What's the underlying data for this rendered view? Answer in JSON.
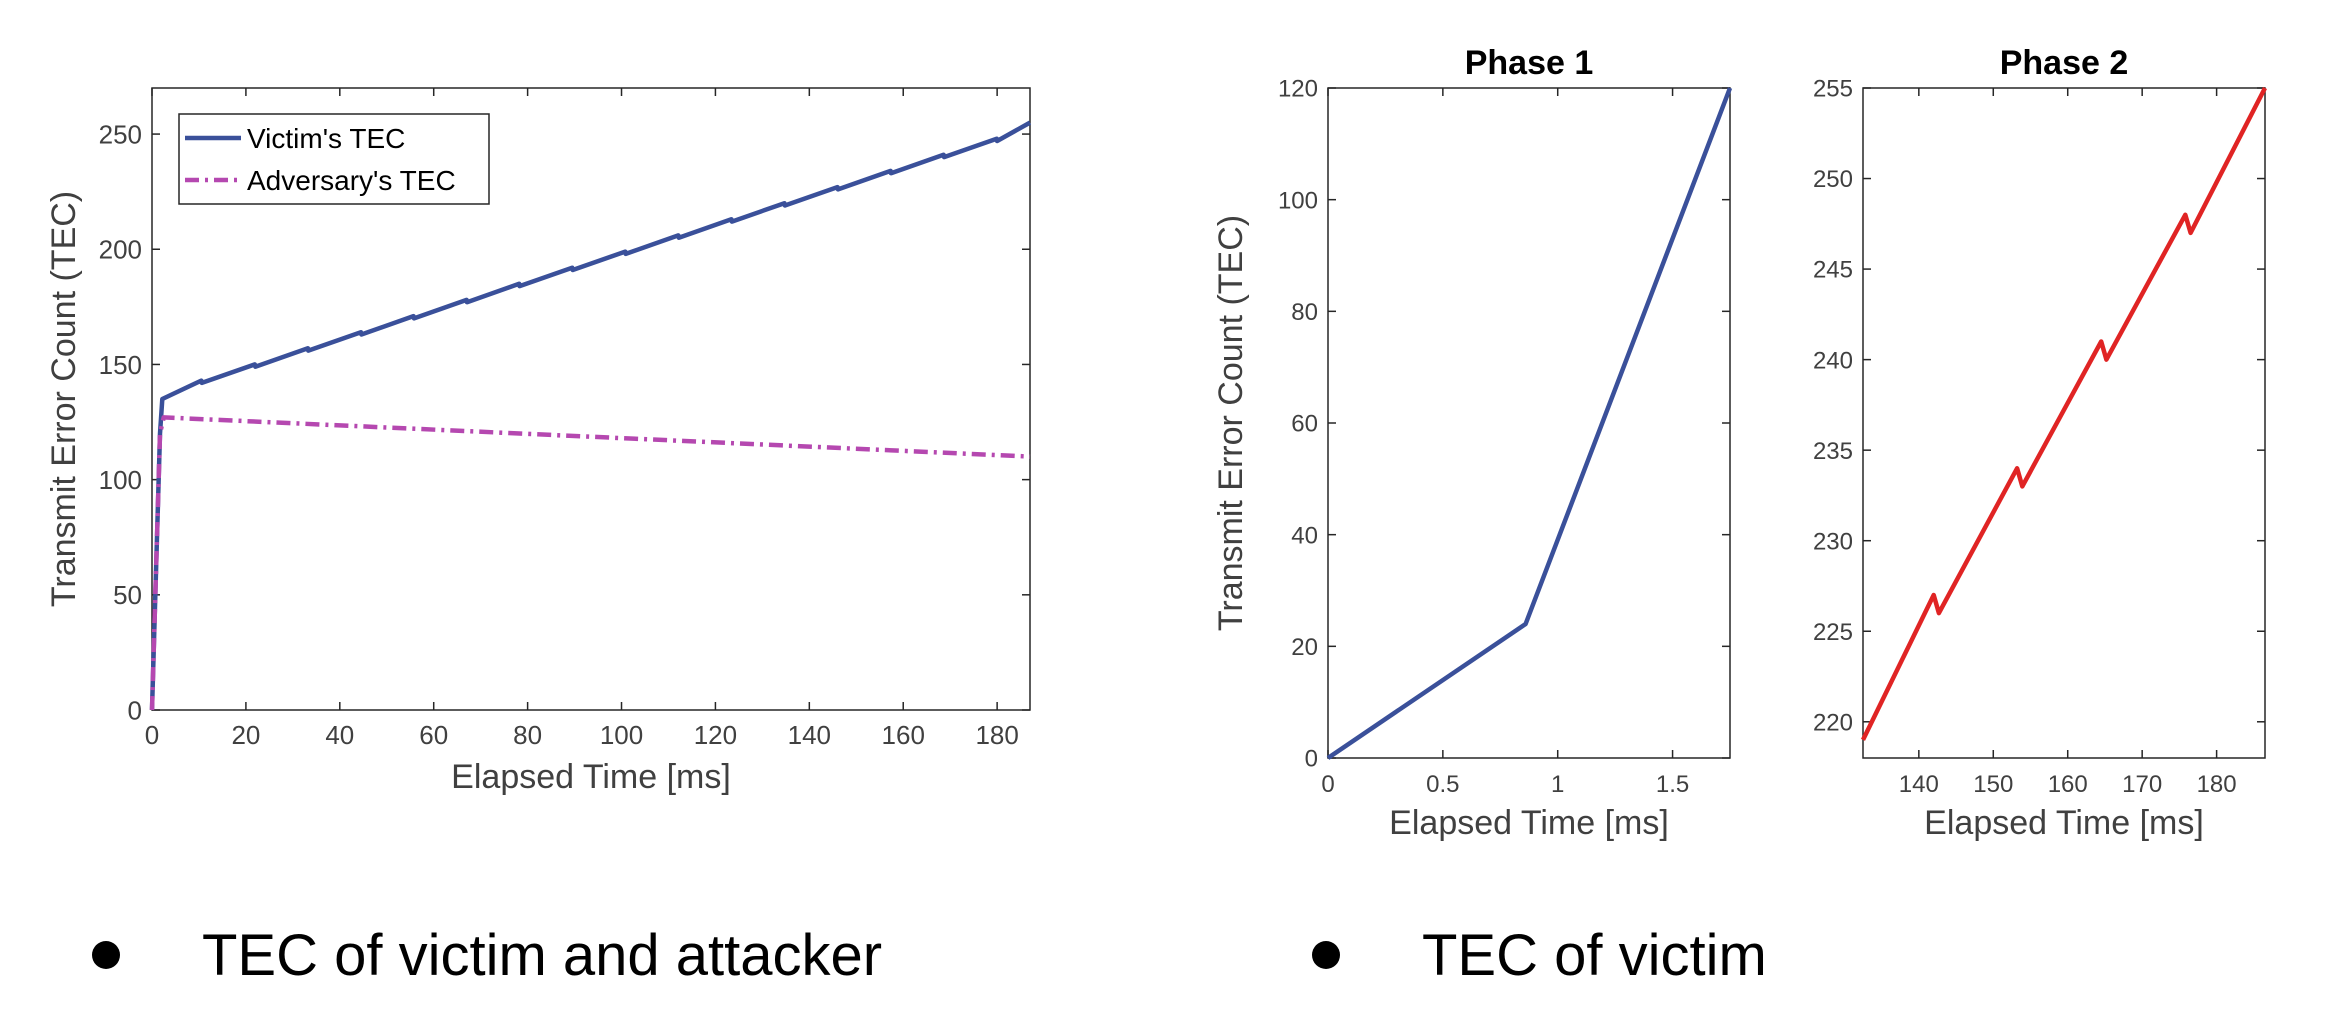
{
  "chart_data": [
    {
      "type": "line",
      "title": "",
      "xlabel": "Elapsed Time [ms]",
      "ylabel": "Transmit Error Count (TEC)",
      "xlim": [
        0,
        187
      ],
      "ylim": [
        0,
        270
      ],
      "xticks": [
        0,
        20,
        40,
        60,
        80,
        100,
        120,
        140,
        160,
        180
      ],
      "yticks": [
        0,
        50,
        100,
        150,
        200,
        250
      ],
      "legend_position": "top-left",
      "grid": false,
      "series": [
        {
          "name": "Victim's TEC",
          "color": "#3A509A",
          "style": "solid",
          "x": [
            0,
            1.7,
            2.2,
            10.5,
            10.6,
            21.9,
            22.0,
            33.2,
            33.3,
            44.5,
            44.6,
            55.7,
            55.8,
            67.0,
            67.1,
            78.2,
            78.3,
            89.5,
            89.6,
            100.8,
            100.9,
            112.1,
            112.2,
            123.4,
            123.5,
            134.7,
            134.8,
            146.0,
            146.1,
            157.3,
            157.4,
            168.6,
            168.7,
            179.9,
            180.0,
            187
          ],
          "y": [
            0,
            120,
            135,
            143,
            142,
            150,
            149,
            157,
            156,
            164,
            163,
            171,
            170,
            178,
            177,
            185,
            184,
            192,
            191,
            199,
            198,
            206,
            205,
            213,
            212,
            220,
            219,
            227,
            226,
            234,
            233,
            241,
            240,
            248,
            247,
            255
          ]
        },
        {
          "name": "Adversary's TEC",
          "color": "#B548B0",
          "style": "dashdot",
          "x": [
            0,
            1.7,
            2.5,
            187
          ],
          "y": [
            0,
            120,
            127,
            110
          ]
        }
      ]
    },
    {
      "type": "line",
      "title": "Phase 1",
      "xlabel": "Elapsed Time [ms]",
      "ylabel": "Transmit Error Count (TEC)",
      "xlim": [
        0,
        1.75
      ],
      "ylim": [
        0,
        120
      ],
      "xticks": [
        0,
        0.5,
        1,
        1.5
      ],
      "xtick_labels": [
        "0",
        "0.5",
        "1",
        "1.5"
      ],
      "yticks": [
        0,
        20,
        40,
        60,
        80,
        100,
        120
      ],
      "grid": false,
      "series": [
        {
          "color": "#3A509A",
          "style": "solid",
          "x": [
            0,
            0.86,
            1.75
          ],
          "y": [
            0,
            24,
            120
          ]
        }
      ]
    },
    {
      "type": "line",
      "title": "Phase 2",
      "xlabel": "Elapsed Time [ms]",
      "ylabel": "",
      "xlim": [
        132.5,
        186.5
      ],
      "ylim": [
        218,
        255
      ],
      "xticks": [
        140,
        150,
        160,
        170,
        180
      ],
      "yticks": [
        220,
        225,
        230,
        235,
        240,
        245,
        250,
        255
      ],
      "grid": false,
      "series": [
        {
          "color": "#E02424",
          "style": "solid",
          "x": [
            132.5,
            142.0,
            142.7,
            153.2,
            153.9,
            164.5,
            165.2,
            175.8,
            176.5,
            186.5
          ],
          "y": [
            219,
            227,
            226,
            234,
            233,
            241,
            240,
            248,
            247,
            255
          ]
        }
      ]
    }
  ],
  "bullets": [
    {
      "text": "TEC of victim and attacker"
    },
    {
      "text": "TEC of victim"
    }
  ]
}
